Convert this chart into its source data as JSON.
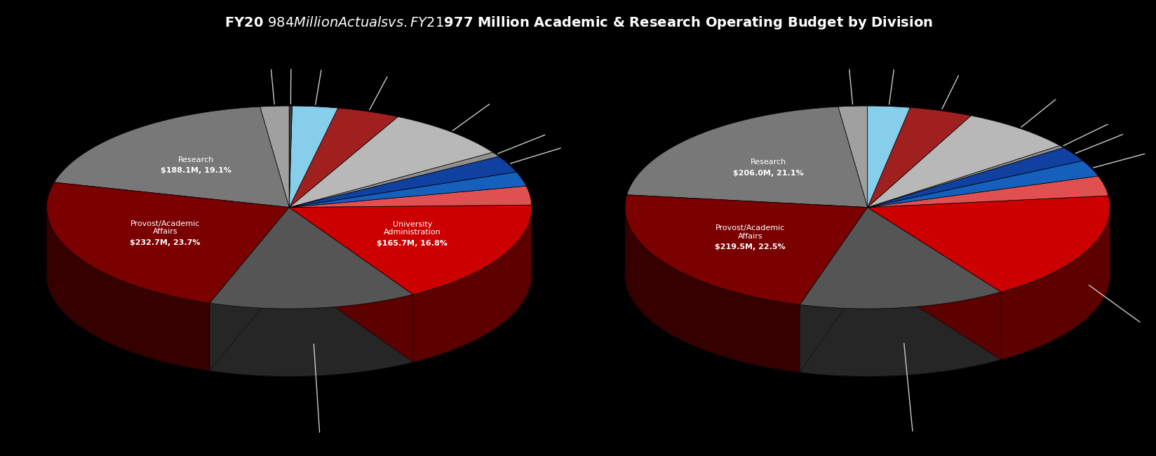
{
  "title": "FY20 $984 Million Actuals vs. FY21 $977 Million Academic & Research Operating Budget by Division",
  "title_bg": "#8B0000",
  "background_color": "#000000",
  "chart1": {
    "values": [
      18.9,
      188.1,
      232.7,
      136.3,
      165.7,
      29.5,
      22.6,
      26.6,
      7.5,
      83.3,
      41.1,
      29.8,
      1.9
    ],
    "colors": [
      "#A0A0A0",
      "#787878",
      "#7B0000",
      "#555555",
      "#CC0000",
      "#E05050",
      "#1560BD",
      "#1040A0",
      "#909090",
      "#B8B8B8",
      "#A02020",
      "#87CEEB",
      "#383838"
    ],
    "inside_labels": [
      {
        "idx": 2,
        "line1": "Provost/Academic",
        "line2": "Affairs",
        "line3": "$232.7M, 23.7%"
      },
      {
        "idx": 1,
        "line1": "Research",
        "line2": "",
        "line3": "$188.1M, 19.1%"
      },
      {
        "idx": 4,
        "line1": "University",
        "line2": "Administration",
        "line3": "$165.7M, 16.8%"
      }
    ],
    "leader_indices": [
      0,
      3,
      5,
      6,
      7,
      8,
      9,
      10,
      11,
      12
    ]
  },
  "chart2": {
    "values": [
      18.9,
      206.0,
      219.5,
      134.6,
      171.4,
      30.9,
      25.5,
      23.7,
      3.9,
      73.8,
      41.1,
      27.4
    ],
    "colors": [
      "#A0A0A0",
      "#787878",
      "#7B0000",
      "#555555",
      "#CC0000",
      "#E05050",
      "#1560BD",
      "#1040A0",
      "#909090",
      "#B8B8B8",
      "#A02020",
      "#87CEEB"
    ],
    "inside_labels": [
      {
        "idx": 2,
        "line1": "Provost/Academic",
        "line2": "Affairs",
        "line3": "$219.5M, 22.5%"
      },
      {
        "idx": 1,
        "line1": "Research",
        "line2": "",
        "line3": "$206.0M, 21.1%"
      }
    ],
    "leader_indices": [
      0,
      3,
      4,
      5,
      6,
      7,
      8,
      9,
      10,
      11
    ]
  }
}
